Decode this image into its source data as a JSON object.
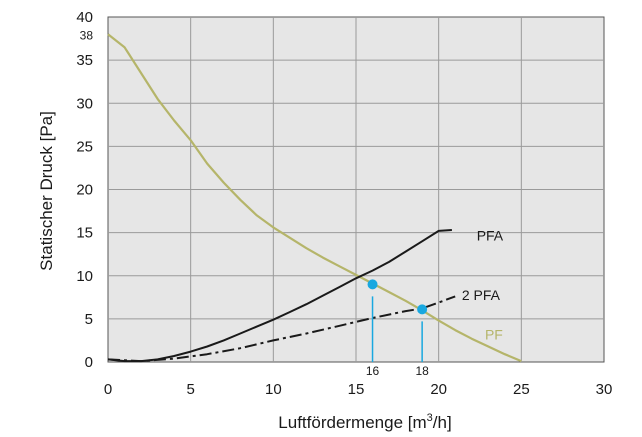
{
  "chart_data": {
    "type": "line",
    "xlabel_main": "Luftfördermenge [m",
    "xlabel_sup": "3",
    "xlabel_tail": "/h]",
    "ylabel": "Statischer Druck [Pa]",
    "xlim": [
      0,
      30
    ],
    "ylim": [
      0,
      40
    ],
    "x_ticks": [
      "0",
      "5",
      "10",
      "15",
      "20",
      "25",
      "30"
    ],
    "y_ticks": [
      "0",
      "5",
      "10",
      "15",
      "20",
      "25",
      "30",
      "35",
      "40"
    ],
    "extra_y_label": "38",
    "grid": true,
    "series": [
      {
        "name": "PF",
        "color": "#b5b56a",
        "style": "solid",
        "points": [
          [
            0,
            38
          ],
          [
            1,
            36.5
          ],
          [
            2,
            33.5
          ],
          [
            3,
            30.5
          ],
          [
            4,
            28
          ],
          [
            5,
            25.7
          ],
          [
            6,
            23
          ],
          [
            7,
            20.8
          ],
          [
            8,
            18.8
          ],
          [
            9,
            17
          ],
          [
            10,
            15.6
          ],
          [
            11,
            14.4
          ],
          [
            12,
            13.2
          ],
          [
            13,
            12.1
          ],
          [
            14,
            11.1
          ],
          [
            15,
            10.1
          ],
          [
            16,
            9.1
          ],
          [
            17,
            8.1
          ],
          [
            18,
            7.1
          ],
          [
            19,
            6.0
          ],
          [
            20,
            4.8
          ],
          [
            21,
            3.7
          ],
          [
            22,
            2.7
          ],
          [
            23,
            1.8
          ],
          [
            24,
            0.9
          ],
          [
            25,
            0.1
          ]
        ]
      },
      {
        "name": "PFA",
        "color": "#1a1a1a",
        "style": "solid",
        "points": [
          [
            0,
            0.3
          ],
          [
            1,
            0.1
          ],
          [
            2,
            0.1
          ],
          [
            3,
            0.3
          ],
          [
            4,
            0.7
          ],
          [
            5,
            1.2
          ],
          [
            6,
            1.8
          ],
          [
            7,
            2.5
          ],
          [
            8,
            3.3
          ],
          [
            9,
            4.1
          ],
          [
            10,
            4.9
          ],
          [
            11,
            5.8
          ],
          [
            12,
            6.7
          ],
          [
            13,
            7.7
          ],
          [
            14,
            8.7
          ],
          [
            15,
            9.7
          ],
          [
            16,
            10.6
          ],
          [
            17,
            11.6
          ],
          [
            18,
            12.8
          ],
          [
            19,
            14.0
          ],
          [
            20,
            15.2
          ],
          [
            20.8,
            15.3
          ]
        ]
      },
      {
        "name": "2 PFA",
        "color": "#1a1a1a",
        "style": "dashdot",
        "points": [
          [
            0,
            0.3
          ],
          [
            2,
            0.1
          ],
          [
            4,
            0.4
          ],
          [
            6,
            0.9
          ],
          [
            8,
            1.6
          ],
          [
            10,
            2.5
          ],
          [
            12,
            3.3
          ],
          [
            14,
            4.2
          ],
          [
            16,
            5.1
          ],
          [
            18,
            5.9
          ],
          [
            19,
            6.2
          ],
          [
            20,
            6.9
          ],
          [
            21,
            7.6
          ]
        ]
      }
    ],
    "operating_points": [
      {
        "label": "16",
        "x": 16.0,
        "y": 9.0
      },
      {
        "label": "18",
        "x": 19.0,
        "y": 6.1
      }
    ],
    "marker_color": "#19a8e0"
  }
}
